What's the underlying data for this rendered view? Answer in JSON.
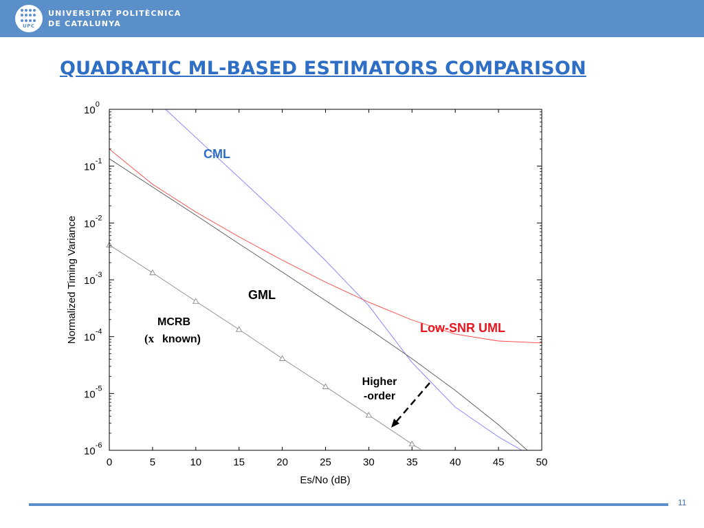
{
  "header": {
    "university_line1": "UNIVERSITAT POLITÈCNICA",
    "university_line2": "DE CATALUNYA",
    "logo_text": "UPC"
  },
  "title": "QUADRATIC ML-BASED ESTIMATORS COMPARISON",
  "page_number": "11",
  "colors": {
    "header": "#5b8fc9",
    "title": "#2e6ec4",
    "cml": "#7b7bff",
    "low_snr_uml": "#ff4040",
    "gml": "#555555",
    "mcrb": "#888888"
  },
  "chart_data": {
    "type": "line",
    "xlabel": "Es/No (dB)",
    "ylabel": "Normalized Timing Variance",
    "xlim": [
      0,
      50
    ],
    "ylim": [
      1e-06,
      1
    ],
    "yscale": "log",
    "x_ticks": [
      "0",
      "5",
      "10",
      "15",
      "20",
      "25",
      "30",
      "35",
      "40",
      "45",
      "50"
    ],
    "y_ticks": [
      {
        "base": "10",
        "exp": "0",
        "value": 1
      },
      {
        "base": "10",
        "exp": "-1",
        "value": 0.1
      },
      {
        "base": "10",
        "exp": "-2",
        "value": 0.01
      },
      {
        "base": "10",
        "exp": "-3",
        "value": 0.001
      },
      {
        "base": "10",
        "exp": "-4",
        "value": 0.0001
      },
      {
        "base": "10",
        "exp": "-5",
        "value": 1e-05
      },
      {
        "base": "10",
        "exp": "-6",
        "value": 1e-06
      }
    ],
    "series": [
      {
        "name": "CML",
        "color": "#7b7bff",
        "marker": "none",
        "x": [
          6.5,
          10,
          15,
          20,
          25,
          30,
          35,
          40,
          45,
          48.5
        ],
        "y": [
          1.0,
          0.32,
          0.063,
          0.0123,
          0.00218,
          0.000351,
          3.51e-05,
          5.75e-06,
          1.72e-06,
          8.5e-07
        ]
      },
      {
        "name": "GML",
        "color": "#555555",
        "marker": "none",
        "x": [
          0,
          5,
          10,
          15,
          20,
          25,
          30,
          35,
          40,
          45,
          48.5
        ],
        "y": [
          0.135,
          0.043,
          0.0137,
          0.0043,
          0.00137,
          0.00043,
          0.000137,
          4.1e-05,
          1.13e-05,
          2.81e-06,
          9.5e-07
        ]
      },
      {
        "name": "Low-SNR UML",
        "color": "#ff4040",
        "marker": "none",
        "x": [
          0,
          5,
          10,
          15,
          20,
          25,
          30,
          35,
          40,
          45,
          50
        ],
        "y": [
          0.2,
          0.048,
          0.0156,
          0.0057,
          0.00222,
          0.00091,
          0.000403,
          0.000196,
          0.000111,
          8.39e-05,
          7.76e-05
        ]
      },
      {
        "name": "MCRB",
        "color": "#888888",
        "marker": "triangle",
        "x": [
          0,
          5,
          10,
          15,
          20,
          25,
          30,
          35,
          36
        ],
        "y": [
          0.0041,
          0.00133,
          0.000418,
          0.000134,
          4.12e-05,
          1.32e-05,
          4.15e-06,
          1.29e-06,
          1.04e-06
        ]
      }
    ],
    "annotations": {
      "cml": "CML",
      "gml": "GML",
      "mcrb_line1": "MCRB",
      "mcrb_line2_symbol": "(x",
      "mcrb_line2_text": "known)",
      "low_snr_uml": "Low-SNR UML",
      "higher_line1": "Higher",
      "higher_line2": "-order"
    }
  }
}
